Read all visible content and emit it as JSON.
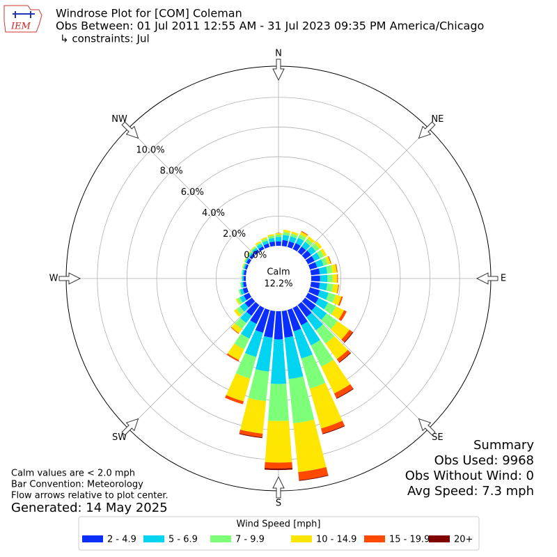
{
  "logo_text": "IEM",
  "chart_data": {
    "type": "windrose",
    "title": "Windrose Plot for [COM] Coleman",
    "subtitle": "Obs Between: 01 Jul 2011 12:55 AM - 31 Jul 2023 09:35 PM America/Chicago",
    "constraints": "↳ constraints: Jul",
    "direction_labels": [
      "N",
      "NE",
      "E",
      "SE",
      "S",
      "SW",
      "W",
      "NW"
    ],
    "categories": [
      null,
      null,
      null,
      null,
      null,
      null,
      null,
      null,
      null,
      null,
      null,
      null,
      null,
      null,
      null,
      null,
      null,
      null,
      null,
      null,
      null,
      null,
      null,
      null,
      null,
      null,
      null,
      null,
      null,
      null,
      null,
      null,
      null,
      null,
      null,
      null
    ],
    "rlim": [
      0,
      12.1
    ],
    "rticks": [
      {
        "value": 0,
        "label": "0.0%"
      },
      {
        "value": 2,
        "label": "2.0%"
      },
      {
        "value": 4,
        "label": "4.0%"
      },
      {
        "value": 6,
        "label": "6.0%"
      },
      {
        "value": 8,
        "label": "8.0%"
      },
      {
        "value": 10,
        "label": "10.0%"
      }
    ],
    "grid": true,
    "calm_label": "Calm",
    "calm_value": 12.2,
    "calm_value_label": "12.2%",
    "legend_title": "Wind Speed [mph]",
    "series": [
      {
        "name": "2 - 4.9",
        "color": "#0a2eff",
        "values": [
          0.3,
          0.4,
          0.4,
          0.45,
          0.45,
          0.5,
          0.5,
          0.5,
          0.6,
          0.6,
          0.6,
          0.7,
          0.8,
          0.9,
          1.0,
          1.3,
          1.5,
          1.8,
          1.9,
          1.8,
          1.6,
          1.2,
          0.9,
          0.6,
          0.4,
          0.3,
          0.2,
          0.15,
          0.15,
          0.15,
          0.2,
          0.2,
          0.2,
          0.2,
          0.25,
          0.3
        ]
      },
      {
        "name": "5 - 6.9",
        "color": "#00d4f0",
        "values": [
          0.3,
          0.35,
          0.35,
          0.4,
          0.4,
          0.4,
          0.4,
          0.45,
          0.5,
          0.5,
          0.5,
          0.6,
          0.7,
          0.9,
          1.1,
          1.5,
          1.9,
          2.8,
          3.0,
          2.3,
          1.7,
          1.1,
          0.6,
          0.4,
          0.3,
          0.2,
          0.1,
          0.1,
          0.1,
          0.1,
          0.1,
          0.1,
          0.15,
          0.2,
          0.2,
          0.25
        ]
      },
      {
        "name": "7 - 9.9",
        "color": "#7dff7a",
        "values": [
          0.15,
          0.2,
          0.2,
          0.25,
          0.25,
          0.3,
          0.3,
          0.3,
          0.35,
          0.35,
          0.4,
          0.5,
          0.6,
          0.9,
          1.1,
          1.6,
          2.1,
          3.0,
          2.5,
          2.0,
          1.5,
          0.8,
          0.5,
          0.3,
          0.2,
          0.1,
          0.1,
          0.05,
          0.05,
          0.05,
          0.05,
          0.1,
          0.1,
          0.1,
          0.15,
          0.15
        ]
      },
      {
        "name": "10 - 14.9",
        "color": "#ffe600",
        "values": [
          0.1,
          0.15,
          0.15,
          0.2,
          0.2,
          0.2,
          0.2,
          0.2,
          0.3,
          0.3,
          0.35,
          0.4,
          0.6,
          1.0,
          1.3,
          2.0,
          2.8,
          3.3,
          2.8,
          2.2,
          1.6,
          0.8,
          0.35,
          0.2,
          0.1,
          0,
          0,
          0,
          0,
          0.05,
          0.05,
          0.05,
          0.05,
          0.1,
          0.1,
          0.1
        ]
      },
      {
        "name": "15 - 19.9",
        "color": "#ff4a00",
        "values": [
          0,
          0,
          0,
          0.05,
          0,
          0,
          0,
          0.05,
          0.05,
          0.05,
          0.05,
          0.1,
          0.2,
          0.25,
          0.25,
          0.35,
          0.35,
          0.55,
          0.4,
          0.25,
          0.2,
          0.1,
          0.05,
          0,
          0,
          0,
          0,
          0,
          0,
          0,
          0,
          0,
          0,
          0,
          0,
          0
        ]
      },
      {
        "name": "20+",
        "color": "#800000",
        "values": [
          0,
          0,
          0,
          0,
          0,
          0,
          0,
          0,
          0,
          0,
          0,
          0,
          0,
          0.05,
          0.05,
          0.05,
          0.05,
          0.05,
          0.1,
          0.05,
          0,
          0,
          0,
          0,
          0,
          0,
          0,
          0,
          0,
          0,
          0,
          0,
          0,
          0,
          0,
          0
        ]
      }
    ],
    "summary": [
      "Summary",
      "Obs Used: 9968",
      "Obs Without Wind: 0",
      "Avg Speed: 7.3 mph"
    ],
    "notes": [
      "Calm values are < 2.0 mph",
      "Bar Convention: Meteorology",
      "Flow arrows relative to plot center."
    ],
    "generated": "Generated: 14 May 2025"
  }
}
